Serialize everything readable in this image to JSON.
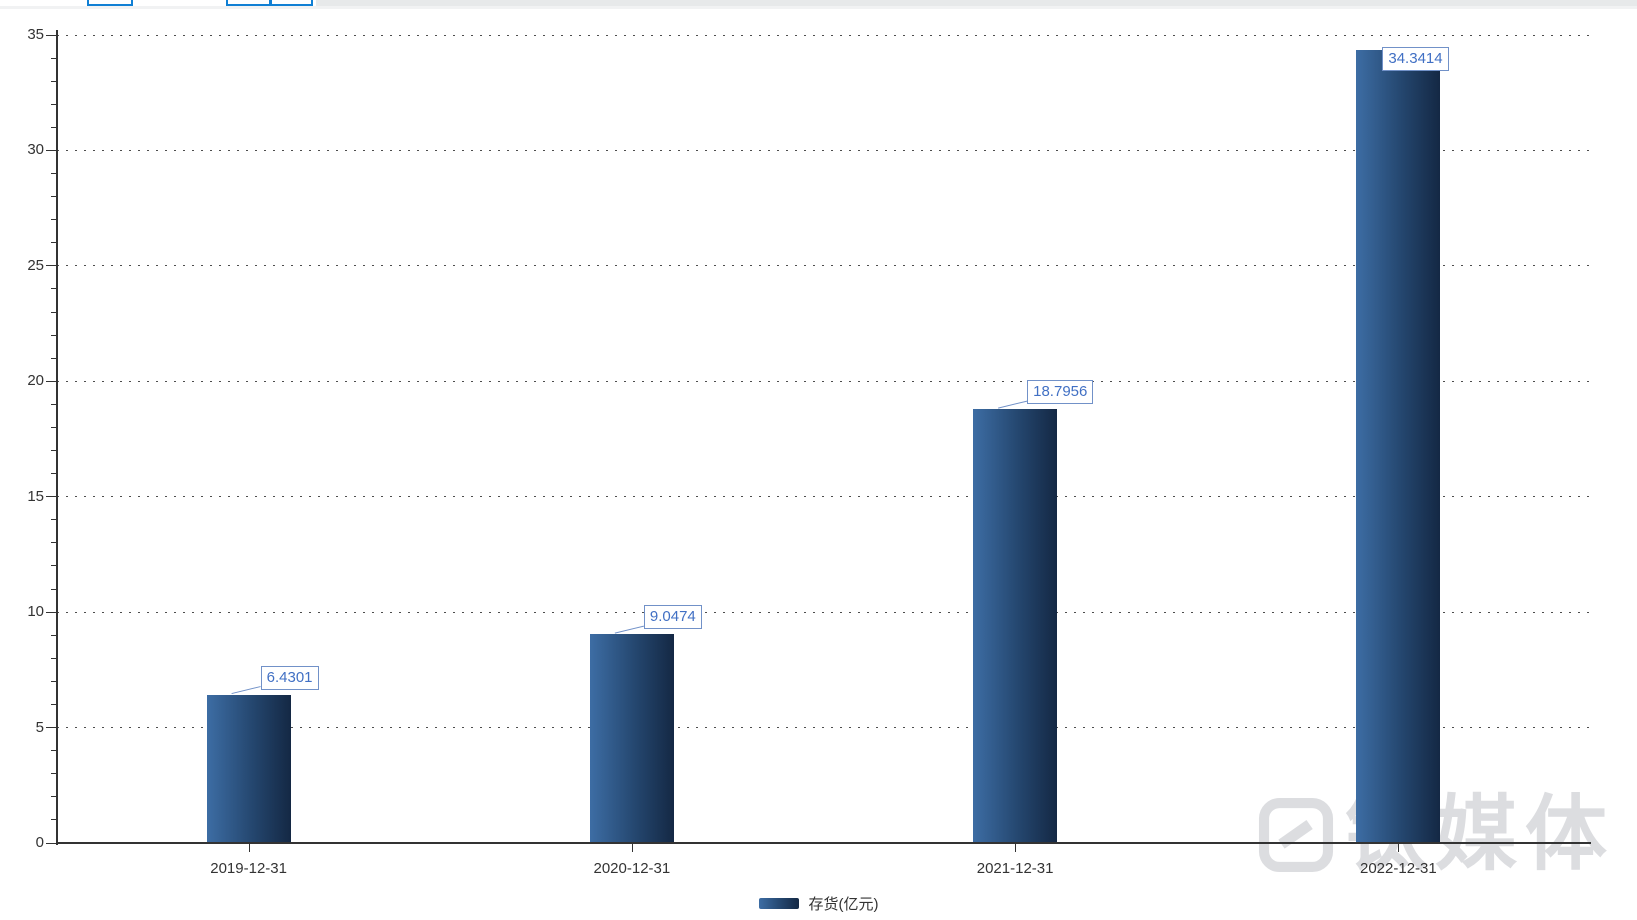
{
  "chart_data": {
    "type": "bar",
    "title": "",
    "categories": [
      "2019-12-31",
      "2020-12-31",
      "2021-12-31",
      "2022-12-31"
    ],
    "series": [
      {
        "name": "存货(亿元)",
        "values": [
          6.4301,
          9.0474,
          18.7956,
          34.3414
        ]
      }
    ],
    "value_labels": [
      "6.4301",
      "9.0474",
      "18.7956",
      "34.3414"
    ],
    "xlabel": "",
    "ylabel": "",
    "ylim": [
      0,
      35
    ],
    "ytick_interval": 5,
    "yticks": [
      "0",
      "5",
      "10",
      "15",
      "20",
      "25",
      "30",
      "35"
    ],
    "grid": "dotted-horizontal",
    "legend_position": "bottom-center",
    "value_labels_visible": true
  },
  "legend": {
    "items": [
      {
        "label": "存货(亿元)"
      }
    ]
  },
  "watermark": {
    "text": "钛媒体"
  },
  "colors": {
    "bar_gradient_start": "#3d6da4",
    "bar_gradient_mid": "#24466e",
    "bar_gradient_end": "#142844",
    "value_label_text": "#4170c4",
    "value_label_border": "#7191c8",
    "axis": "#333333",
    "grid_dot": "#4d4d4d",
    "watermark_gray": "#dcdde0",
    "toolbar_button_border": "#0f7fd4",
    "toolbar_strip_gray": "#e7e9ea"
  }
}
